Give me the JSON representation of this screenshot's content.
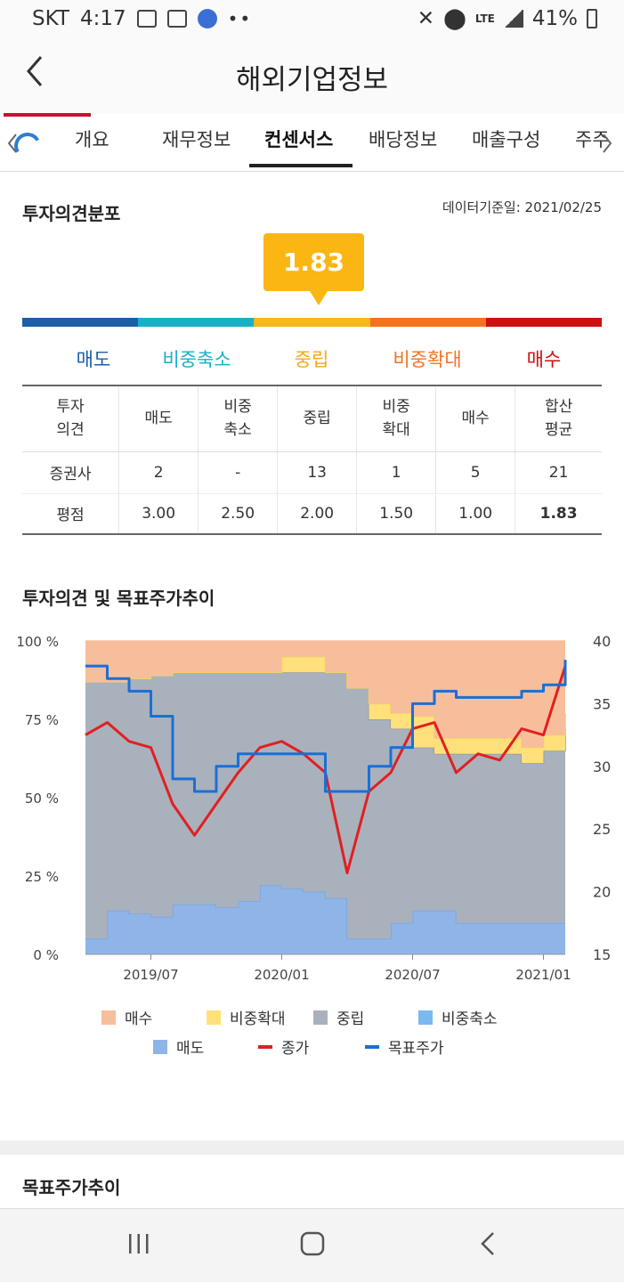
{
  "status_bar": {
    "carrier": "SKT",
    "time": "4:17",
    "lte": "LTE",
    "battery": "41%"
  },
  "header": {
    "title": "해외기업정보"
  },
  "tabs": [
    {
      "label": "개요"
    },
    {
      "label": "재무정보"
    },
    {
      "label": "컨센서스"
    },
    {
      "label": "배당정보"
    },
    {
      "label": "매출구성"
    },
    {
      "label": "주주"
    }
  ],
  "opinion": {
    "title": "투자의견분포",
    "date_label": "데이터기준일: 2021/02/25",
    "score": "1.83",
    "scale_labels": [
      "매도",
      "비중축소",
      "중립",
      "비중확대",
      "매수"
    ],
    "scale_colors": [
      "#1a5fa8",
      "#17b0c7",
      "#f5b71a",
      "#f37321",
      "#cc1010"
    ],
    "table": {
      "header": [
        "투자\n의견",
        "매도",
        "비중\n축소",
        "중립",
        "비중\n확대",
        "매수",
        "합산\n평균"
      ],
      "rows": [
        [
          "증권사",
          "2",
          "-",
          "13",
          "1",
          "5",
          "21"
        ],
        [
          "평점",
          "3.00",
          "2.50",
          "2.00",
          "1.50",
          "1.00",
          "1.83"
        ]
      ]
    }
  },
  "trend": {
    "title": "투자의견 및 목표주가추이",
    "chart_data": {
      "type": "area",
      "x": [
        "2019/04",
        "2019/05",
        "2019/06",
        "2019/07",
        "2019/08",
        "2019/09",
        "2019/10",
        "2019/11",
        "2019/12",
        "2020/01",
        "2020/02",
        "2020/03",
        "2020/04",
        "2020/05",
        "2020/06",
        "2020/07",
        "2020/08",
        "2020/09",
        "2020/10",
        "2020/11",
        "2020/12",
        "2021/01",
        "2021/02"
      ],
      "x_ticks": [
        "2019/07",
        "2020/01",
        "2020/07",
        "2021/01"
      ],
      "y_left_ticks": [
        "0 %",
        "25 %",
        "50 %",
        "75 %",
        "100 %"
      ],
      "y_right_ticks": [
        "15",
        "20",
        "25",
        "30",
        "35",
        "40"
      ],
      "y_left_range": [
        0,
        100
      ],
      "y_right_range": [
        15,
        40
      ],
      "series": [
        {
          "name": "매도",
          "color": "#8fb4e8",
          "values": [
            5,
            14,
            13,
            12,
            16,
            16,
            15,
            17,
            22,
            21,
            20,
            18,
            5,
            5,
            10,
            14,
            14,
            10,
            10,
            10,
            10,
            10,
            10
          ]
        },
        {
          "name": "비중축소",
          "color": "#7ab8f0",
          "values": [
            0,
            0,
            0,
            0,
            0,
            0,
            0,
            0,
            0,
            0,
            0,
            0,
            0,
            0,
            0,
            0,
            0,
            0,
            0,
            0,
            0,
            0,
            0
          ]
        },
        {
          "name": "중립",
          "color": "#a9b1bd",
          "values": [
            82,
            73,
            75,
            77,
            74,
            74,
            75,
            73,
            68,
            69,
            70,
            72,
            80,
            70,
            62,
            52,
            50,
            54,
            54,
            54,
            51,
            55,
            62
          ]
        },
        {
          "name": "비중확대",
          "color": "#ffe07a",
          "values": [
            0,
            0,
            0,
            0,
            0,
            0,
            0,
            0,
            0,
            5,
            5,
            0,
            0,
            5,
            5,
            10,
            5,
            5,
            5,
            5,
            5,
            5,
            5
          ]
        },
        {
          "name": "매수",
          "color": "#f7be9c",
          "values": [
            13,
            13,
            12,
            11,
            10,
            10,
            10,
            10,
            10,
            5,
            5,
            10,
            15,
            20,
            23,
            24,
            31,
            31,
            31,
            31,
            34,
            30,
            23
          ]
        }
      ],
      "lines": [
        {
          "name": "종가",
          "color": "#e02020",
          "axis": "right",
          "values": [
            32.5,
            33.5,
            32,
            31.5,
            27,
            24.5,
            27,
            29.5,
            31.5,
            32,
            31,
            29.5,
            21.5,
            28,
            29.5,
            33,
            33.5,
            29.5,
            31,
            30.5,
            33,
            32.5,
            38
          ]
        },
        {
          "name": "목표주가",
          "color": "#1a6fd6",
          "axis": "right",
          "values": [
            38,
            37,
            36,
            34,
            29,
            28,
            30,
            31,
            31,
            31,
            31,
            28,
            28,
            30,
            31.5,
            35,
            36,
            35.5,
            35.5,
            35.5,
            36,
            36.5,
            38.5
          ]
        }
      ],
      "legend": [
        "매수",
        "비중확대",
        "중립",
        "비중축소",
        "매도",
        "종가",
        "목표주가"
      ]
    }
  },
  "next_section": {
    "title": "목표주가추이"
  }
}
